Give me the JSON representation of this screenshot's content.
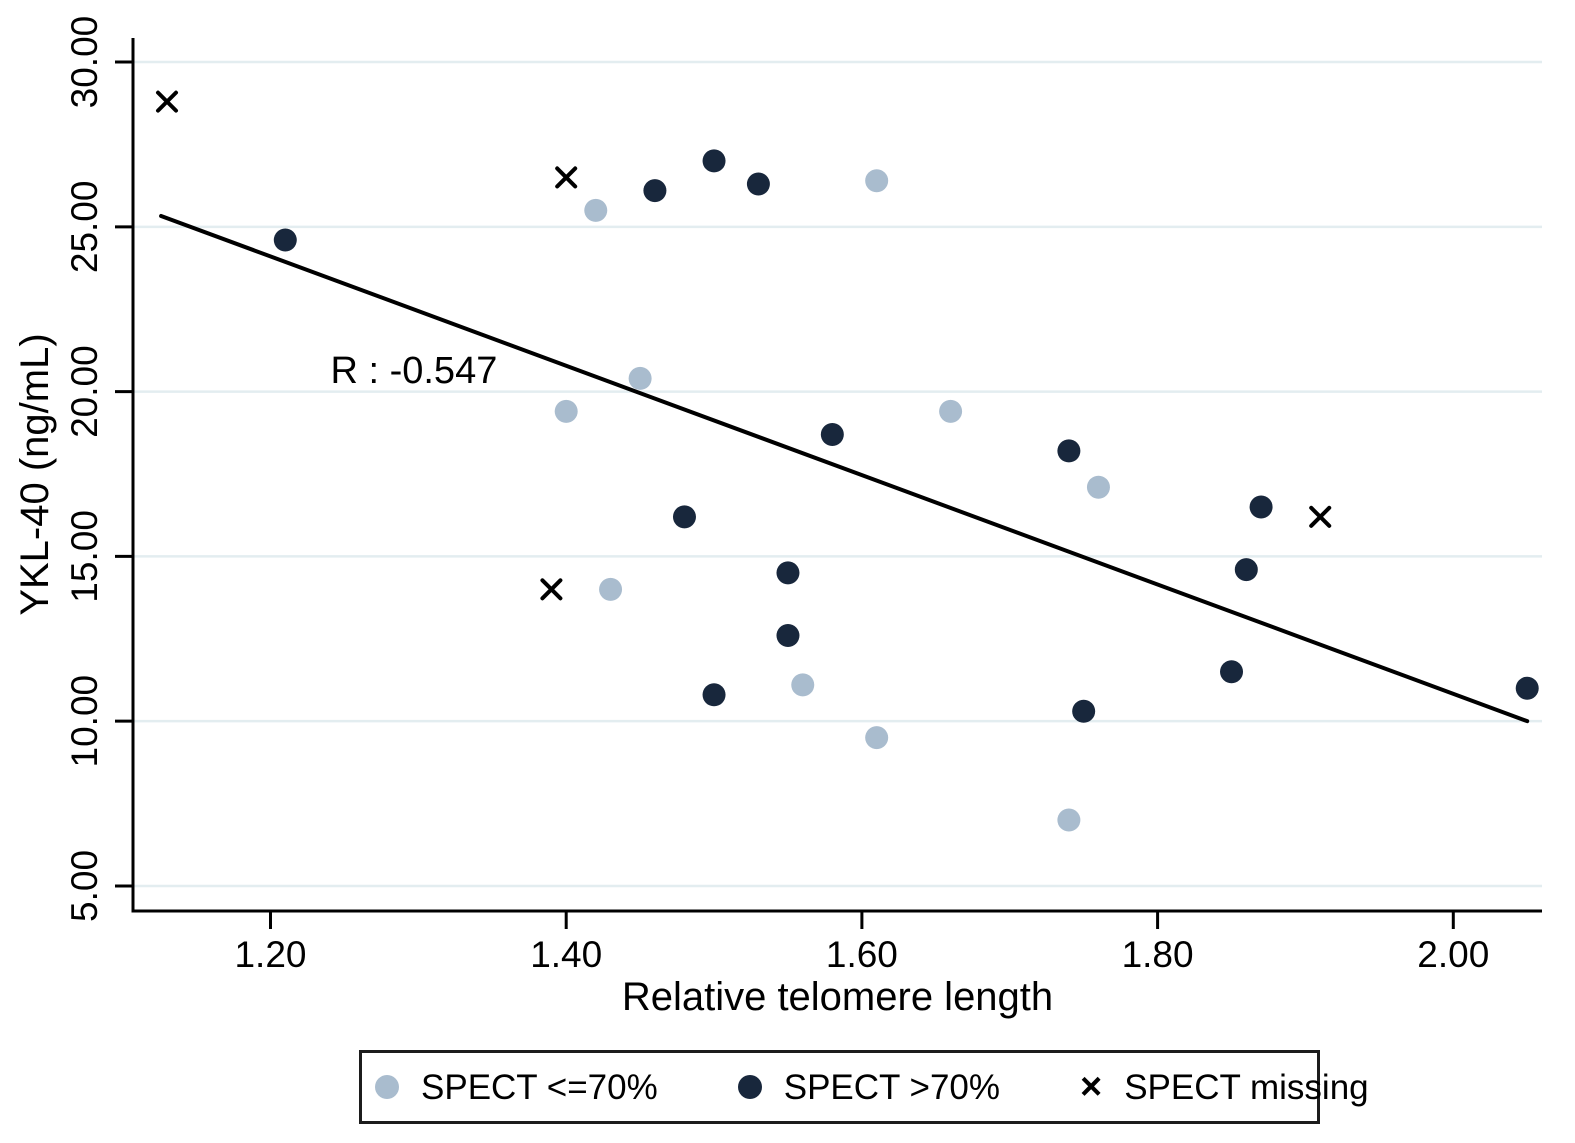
{
  "chart_data": {
    "type": "scatter",
    "title": "",
    "xlabel": "Relative telomere length",
    "ylabel": "YKL-40 (ng/mL)",
    "xlim": [
      1.107,
      2.06
    ],
    "ylim": [
      4.24,
      30.73
    ],
    "x_ticks": [
      "1.20",
      "1.40",
      "1.60",
      "1.80",
      "2.00"
    ],
    "y_ticks": [
      "5.00",
      "10.00",
      "15.00",
      "20.00",
      "25.00",
      "30.00"
    ],
    "grid": "horizontal",
    "legend_position": "bottom",
    "colors": {
      "grid": "#e3edf0",
      "axis": "#000000"
    },
    "annotation": {
      "text": "R : -0.547",
      "x": 1.297,
      "y": 20.65
    },
    "regression_line": {
      "x1": 1.126,
      "y1": 25.33,
      "x2": 2.05,
      "y2": 10.0
    },
    "series": [
      {
        "name": "SPECT <=70%",
        "marker": "circle",
        "color": "#a9bcce",
        "points": [
          [
            1.42,
            25.5
          ],
          [
            1.61,
            26.4
          ],
          [
            1.45,
            20.4
          ],
          [
            1.4,
            19.4
          ],
          [
            1.66,
            19.4
          ],
          [
            1.76,
            17.1
          ],
          [
            1.43,
            14.0
          ],
          [
            1.56,
            11.1
          ],
          [
            1.61,
            9.5
          ],
          [
            1.74,
            7.0
          ]
        ]
      },
      {
        "name": "SPECT >70%",
        "marker": "circle",
        "color": "#18273c",
        "points": [
          [
            1.21,
            24.6
          ],
          [
            1.46,
            26.1
          ],
          [
            1.5,
            27.0
          ],
          [
            1.53,
            26.3
          ],
          [
            1.58,
            18.7
          ],
          [
            1.48,
            16.2
          ],
          [
            1.55,
            14.5
          ],
          [
            1.55,
            12.6
          ],
          [
            1.5,
            10.8
          ],
          [
            1.74,
            18.2
          ],
          [
            1.87,
            16.5
          ],
          [
            1.86,
            14.6
          ],
          [
            1.85,
            11.5
          ],
          [
            1.75,
            10.3
          ],
          [
            2.05,
            11.0
          ]
        ]
      },
      {
        "name": "SPECT missing",
        "marker": "x",
        "color": "#000000",
        "points": [
          [
            1.13,
            28.8
          ],
          [
            1.4,
            26.5
          ],
          [
            1.39,
            14.0
          ],
          [
            1.91,
            16.2
          ]
        ]
      }
    ]
  }
}
